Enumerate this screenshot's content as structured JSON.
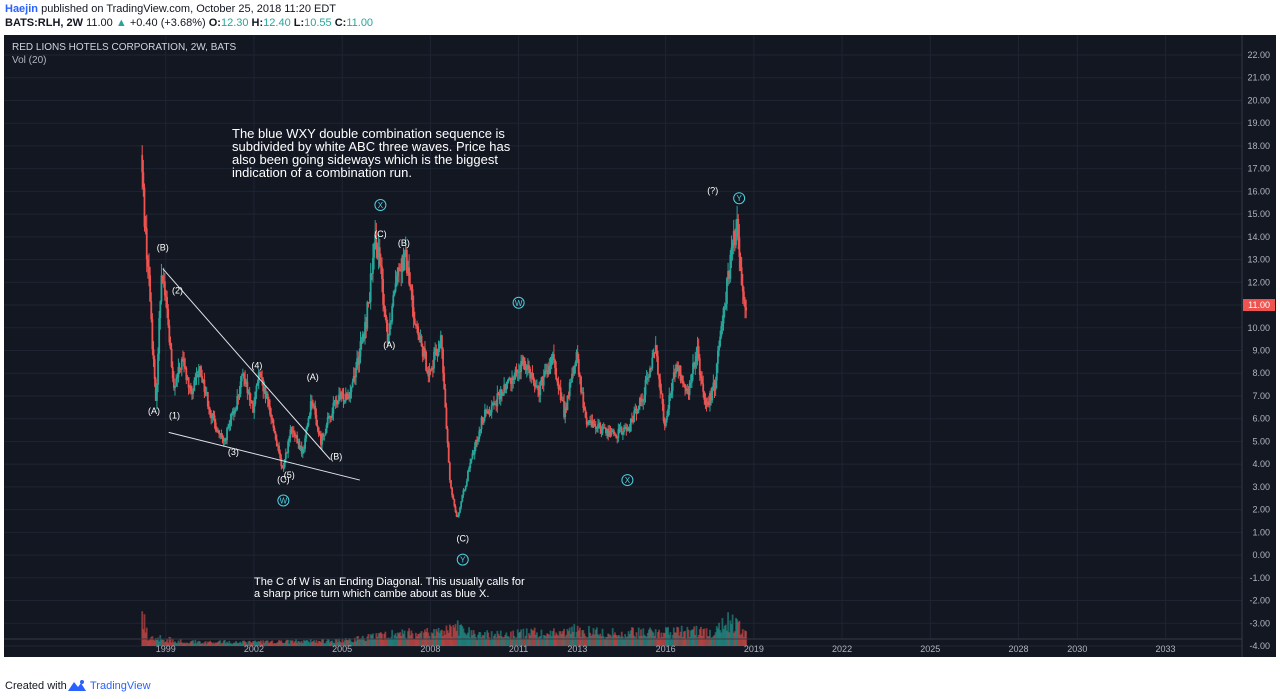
{
  "header": {
    "author": "Haejin",
    "published": "published on TradingView.com, October 25, 2018 11:20 EDT",
    "symbol": "BATS:RLH, 2W",
    "last": "11.00",
    "arrow": "▲",
    "change": "+0.40 (+3.68%)",
    "o_label": "O:",
    "o_value": "12.30",
    "h_label": "H:",
    "h_value": "12.40",
    "l_label": "L:",
    "l_value": "10.55",
    "c_label": "C:",
    "c_value": "11.00"
  },
  "legend": {
    "title": "RED LIONS HOTELS CORPORATION, 2W, BATS",
    "vol": "Vol (20)"
  },
  "price_tag": "11.00",
  "annotations": {
    "top_text": [
      "The blue WXY double combination sequence is",
      "subdivided by white ABC three waves. Price has",
      "also been going sideways which is the biggest",
      "indication of a combination run."
    ],
    "bottom_text": [
      "The C of W is an Ending Diagonal. This usually calls for",
      "a sharp price turn which cambe about as blue X."
    ],
    "white_labels": [
      {
        "text": "(B)",
        "t": 1998.9,
        "p": 13.4
      },
      {
        "text": "(2)",
        "t": 1999.4,
        "p": 11.5
      },
      {
        "text": "(A)",
        "t": 1998.6,
        "p": 6.2
      },
      {
        "text": "(1)",
        "t": 1999.3,
        "p": 6.0
      },
      {
        "text": "(3)",
        "t": 2001.3,
        "p": 4.4
      },
      {
        "text": "(4)",
        "t": 2002.1,
        "p": 8.2
      },
      {
        "text": "(A)",
        "t": 2004.0,
        "p": 7.7
      },
      {
        "text": "(5)",
        "t": 2003.2,
        "p": 3.4
      },
      {
        "text": "(C)",
        "t": 2003.0,
        "p": 3.2
      },
      {
        "text": "(B)",
        "t": 2004.8,
        "p": 4.2
      },
      {
        "text": "(C)",
        "t": 2006.3,
        "p": 14.0
      },
      {
        "text": "(B)",
        "t": 2007.1,
        "p": 13.6
      },
      {
        "text": "(A)",
        "t": 2006.6,
        "p": 9.1
      },
      {
        "text": "(C)",
        "t": 2009.1,
        "p": 0.6
      },
      {
        "text": "(?)",
        "t": 2017.6,
        "p": 15.9
      }
    ],
    "blue_circles": [
      {
        "text": "X",
        "t": 2006.3,
        "p": 15.4
      },
      {
        "text": "W",
        "t": 2003.0,
        "p": 2.4
      },
      {
        "text": "W",
        "t": 2011.0,
        "p": 11.1
      },
      {
        "text": "X",
        "t": 2014.7,
        "p": 3.3
      },
      {
        "text": "Y",
        "t": 2009.1,
        "p": -0.2
      },
      {
        "text": "Y",
        "t": 2018.5,
        "p": 15.7
      }
    ]
  },
  "chart_data": {
    "type": "candlestick",
    "title": "RED LIONS HOTELS CORPORATION, 2W, BATS",
    "indicator": "Vol (20)",
    "x_ticks": [
      "1999",
      "2002",
      "2005",
      "2008",
      "2011",
      "2013",
      "2016",
      "2019",
      "2022",
      "2025",
      "2028",
      "2030",
      "2033"
    ],
    "x_tick_years": [
      1999,
      2002,
      2005,
      2008,
      2011,
      2013,
      2016,
      2019,
      2022,
      2025,
      2028,
      2030,
      2033
    ],
    "y_ticks": [
      "22.00",
      "21.00",
      "20.00",
      "19.00",
      "18.00",
      "17.00",
      "16.00",
      "15.00",
      "14.00",
      "13.00",
      "12.00",
      "11.00",
      "10.00",
      "9.00",
      "8.00",
      "7.00",
      "6.00",
      "5.00",
      "4.00",
      "3.00",
      "2.00",
      "1.00",
      "0.00",
      "-1.00",
      "-2.00",
      "-3.00",
      "-4.00"
    ],
    "ylim": [
      -4,
      22
    ],
    "xlim": [
      1993.5,
      2035.6
    ],
    "price_path": [
      [
        1998.2,
        17.6
      ],
      [
        1998.35,
        14.2
      ],
      [
        1998.5,
        11.5
      ],
      [
        1998.7,
        6.6
      ],
      [
        1998.9,
        12.8
      ],
      [
        1999.1,
        10.5
      ],
      [
        1999.3,
        7.2
      ],
      [
        1999.6,
        8.6
      ],
      [
        1999.9,
        7.0
      ],
      [
        2000.2,
        8.2
      ],
      [
        2000.6,
        6.1
      ],
      [
        2001.0,
        4.9
      ],
      [
        2001.4,
        6.5
      ],
      [
        2001.7,
        8.0
      ],
      [
        2002.0,
        6.3
      ],
      [
        2002.2,
        7.9
      ],
      [
        2002.6,
        6.3
      ],
      [
        2003.0,
        3.7
      ],
      [
        2003.3,
        5.5
      ],
      [
        2003.7,
        4.5
      ],
      [
        2004.0,
        6.9
      ],
      [
        2004.3,
        5.0
      ],
      [
        2004.8,
        6.7
      ],
      [
        2005.3,
        7.2
      ],
      [
        2005.8,
        9.8
      ],
      [
        2006.2,
        14.0
      ],
      [
        2006.6,
        9.5
      ],
      [
        2006.9,
        12.8
      ],
      [
        2007.2,
        13.0
      ],
      [
        2007.6,
        9.7
      ],
      [
        2008.0,
        8.0
      ],
      [
        2008.4,
        9.5
      ],
      [
        2008.7,
        3.2
      ],
      [
        2008.95,
        1.6
      ],
      [
        2009.3,
        3.5
      ],
      [
        2009.8,
        6.0
      ],
      [
        2010.4,
        7.0
      ],
      [
        2010.9,
        8.0
      ],
      [
        2011.3,
        8.5
      ],
      [
        2011.7,
        7.2
      ],
      [
        2012.2,
        8.6
      ],
      [
        2012.6,
        6.2
      ],
      [
        2013.0,
        8.8
      ],
      [
        2013.3,
        6.0
      ],
      [
        2013.8,
        5.6
      ],
      [
        2014.3,
        5.3
      ],
      [
        2014.8,
        5.6
      ],
      [
        2015.3,
        7.2
      ],
      [
        2015.7,
        9.1
      ],
      [
        2016.0,
        5.8
      ],
      [
        2016.4,
        8.4
      ],
      [
        2016.8,
        7.0
      ],
      [
        2017.1,
        9.1
      ],
      [
        2017.4,
        6.3
      ],
      [
        2017.7,
        7.5
      ],
      [
        2017.9,
        10.0
      ],
      [
        2018.1,
        11.5
      ],
      [
        2018.3,
        13.5
      ],
      [
        2018.45,
        14.6
      ],
      [
        2018.6,
        12.3
      ],
      [
        2018.75,
        11.0
      ]
    ],
    "volume_envelope": [
      [
        1998.2,
        1.9
      ],
      [
        1998.4,
        0.6
      ],
      [
        1999.5,
        0.3
      ],
      [
        2002.0,
        0.25
      ],
      [
        2003.5,
        0.3
      ],
      [
        2005.0,
        0.35
      ],
      [
        2006.2,
        0.6
      ],
      [
        2007.0,
        0.8
      ],
      [
        2008.0,
        0.8
      ],
      [
        2008.9,
        1.2
      ],
      [
        2009.5,
        0.7
      ],
      [
        2011.0,
        0.8
      ],
      [
        2012.5,
        0.9
      ],
      [
        2013.0,
        1.0
      ],
      [
        2014.0,
        0.8
      ],
      [
        2016.0,
        0.9
      ],
      [
        2017.5,
        0.9
      ],
      [
        2018.0,
        1.6
      ],
      [
        2018.5,
        1.3
      ],
      [
        2018.8,
        0.5
      ]
    ],
    "trendlines": [
      {
        "from": [
          1998.9,
          12.6
        ],
        "to": [
          2004.6,
          4.2
        ]
      },
      {
        "from": [
          1999.1,
          5.4
        ],
        "to": [
          2005.6,
          3.3
        ]
      }
    ],
    "colors": {
      "up": "#26a69a",
      "down": "#ef5350",
      "background": "#131722",
      "label_blue": "#4dd0e1"
    }
  },
  "footer": {
    "created_with": "Created with",
    "brand": "TradingView"
  }
}
